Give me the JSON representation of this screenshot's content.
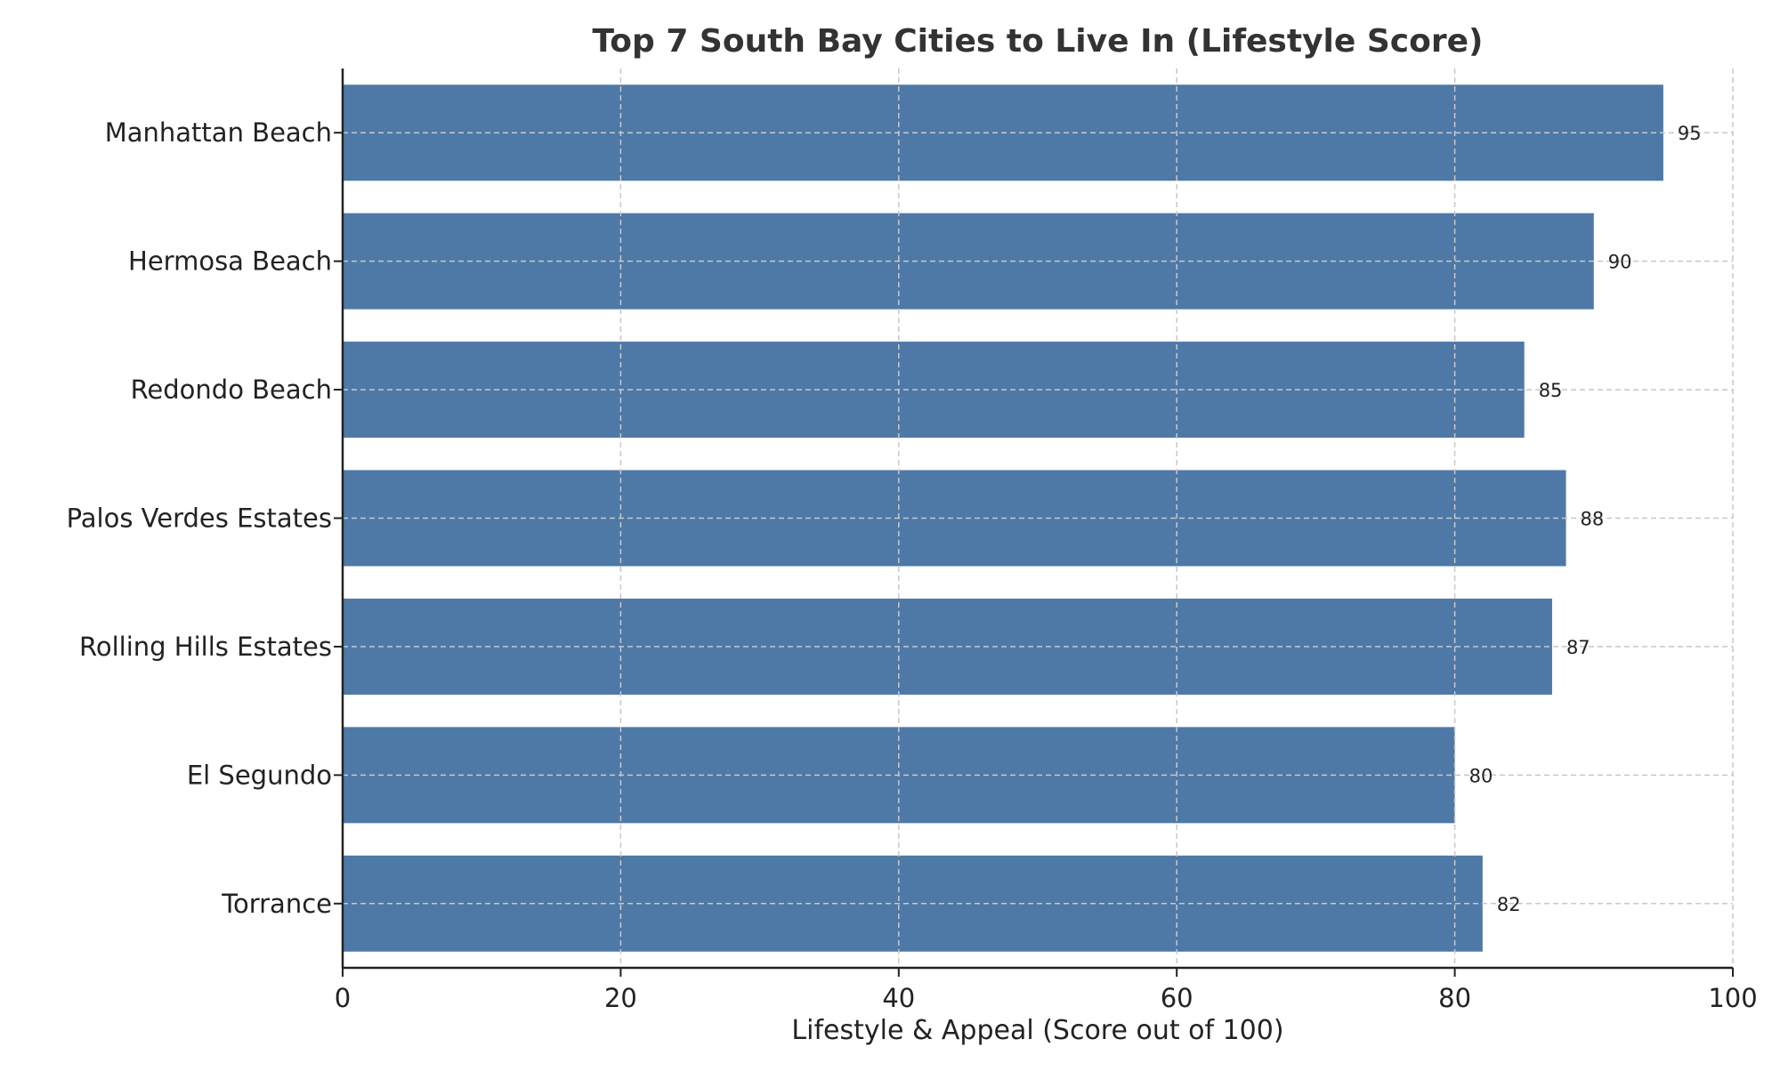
{
  "chart_data": {
    "type": "bar",
    "orientation": "horizontal",
    "title": "Top 7 South Bay Cities to Live In (Lifestyle Score)",
    "xlabel": "Lifestyle & Appeal (Score out of 100)",
    "ylabel": "",
    "categories": [
      "Manhattan Beach",
      "Hermosa Beach",
      "Redondo Beach",
      "Palos Verdes Estates",
      "Rolling Hills Estates",
      "El Segundo",
      "Torrance"
    ],
    "values": [
      95,
      90,
      85,
      88,
      87,
      80,
      82
    ],
    "xlim": [
      0,
      100
    ],
    "xticks": [
      "0",
      "20",
      "40",
      "60",
      "80",
      "100"
    ],
    "grid": true,
    "bar_color": "#4e79a7"
  }
}
